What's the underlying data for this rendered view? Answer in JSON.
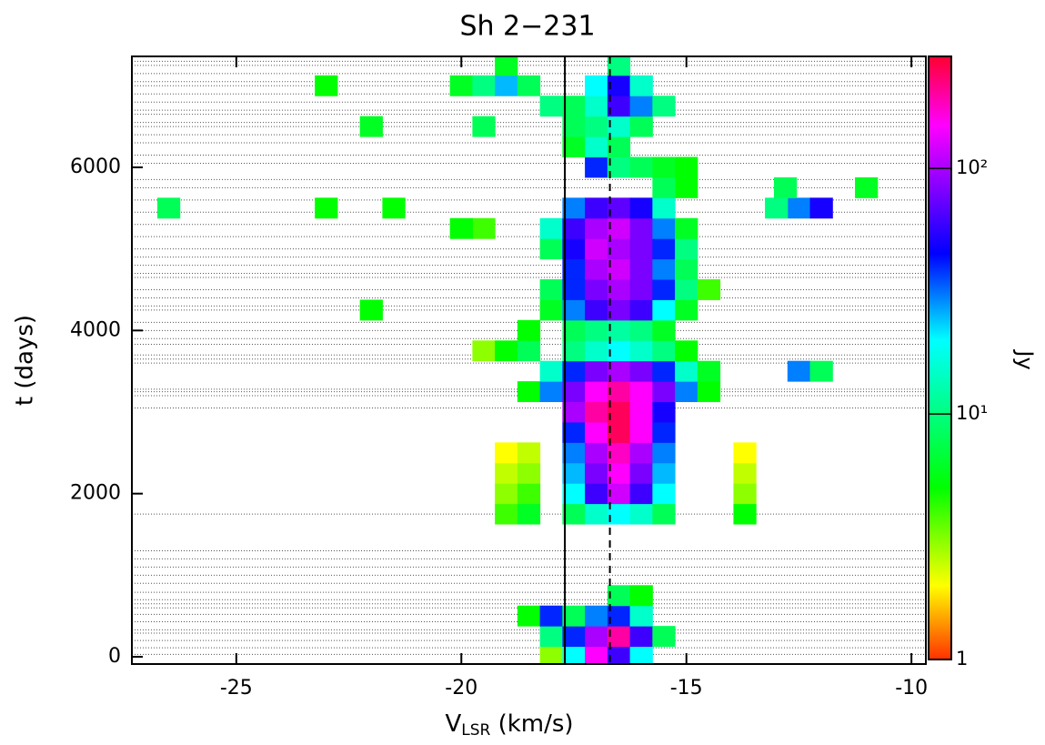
{
  "chart_data": {
    "type": "heatmap",
    "title": "Sh 2−231",
    "x_label": "V",
    "x_label_sub": "LSR",
    "x_label_unit": " (km/s)",
    "y_label": "t (days)",
    "colorbar_label": "Jy",
    "xlim": [
      -27.32,
      -9.68
    ],
    "xticks": [
      -25,
      -20,
      -15,
      -10
    ],
    "ylim": [
      -89,
      7360
    ],
    "yticks": [
      0,
      2000,
      4000,
      6000
    ],
    "clim": [
      1,
      286
    ],
    "cscale": "log",
    "cticks": [
      1,
      {
        "value": 10,
        "label": "10¹"
      },
      {
        "value": 100,
        "label": "10²"
      }
    ],
    "colormap": {
      "values": [
        1,
        2,
        5,
        20,
        45,
        150,
        286
      ],
      "colors": [
        "#ff3000",
        "#ffff00",
        "#00ff00",
        "#00ffff",
        "#0000ff",
        "#ff00ff",
        "#ff0030"
      ]
    },
    "reference_lines": [
      {
        "value": -17.7,
        "style": "solid"
      },
      {
        "value": -16.7,
        "style": "dashed"
      }
    ],
    "epochs": [
      30,
      110,
      200,
      290,
      330,
      430,
      520,
      600,
      650,
      700,
      790,
      900,
      1000,
      1100,
      1200,
      1300,
      1750,
      3050,
      3200,
      3250,
      3280,
      3600,
      3650,
      3700,
      3830,
      3900,
      4000,
      4100,
      4250,
      4300,
      4400,
      4500,
      4650,
      4700,
      4800,
      4900,
      5000,
      5150,
      5300,
      5450,
      5600,
      5750,
      5850,
      6050,
      6150,
      6300,
      6400,
      6500,
      6550,
      6650,
      6700,
      6800,
      6900,
      7000,
      7050,
      7150,
      7250,
      7300
    ],
    "cells": {
      "v": [
        -18,
        -17.5,
        -17,
        -16.5,
        -16,
        -18,
        -17.5,
        -17,
        -16.5,
        -16,
        -15.5,
        -18.5,
        -18,
        -17.5,
        -17,
        -16.5,
        -16,
        -16.5,
        -16,
        -19,
        -18.5,
        -13.7,
        -17.5,
        -17,
        -16.5,
        -16,
        -15.5,
        -19,
        -18.5,
        -17.5,
        -17,
        -16.5,
        -16,
        -15.5,
        -13.7,
        -19,
        -18.5,
        -17.5,
        -17,
        -16.5,
        -16,
        -15.5,
        -13.7,
        -19,
        -18.5,
        -17.5,
        -17,
        -16.5,
        -16,
        -15.5,
        -13.7,
        -17.5,
        -17,
        -16.5,
        -16,
        -15.5,
        -17.5,
        -17,
        -16.5,
        -16,
        -15.5,
        -18.5,
        -18,
        -17.5,
        -17,
        -16.5,
        -16,
        -15.5,
        -15,
        -14.5,
        -18,
        -17.5,
        -17,
        -16.5,
        -16,
        -15.5,
        -15,
        -14.5,
        -12.5,
        -12,
        -19.5,
        -19,
        -18.5,
        -17.5,
        -17,
        -16.5,
        -16,
        -15.5,
        -15,
        -18.5,
        -17.5,
        -17,
        -16.5,
        -16,
        -15.5,
        -18,
        -17.5,
        -17,
        -16.5,
        -16,
        -15.5,
        -15,
        -22,
        -18,
        -17.5,
        -17,
        -16.5,
        -16,
        -15.5,
        -15,
        -14.5,
        -17.5,
        -17,
        -16.5,
        -16,
        -15.5,
        -15,
        -18,
        -17.5,
        -17,
        -16.5,
        -16,
        -15.5,
        -15,
        -19.5,
        -18,
        -17.5,
        -17,
        -16.5,
        -16,
        -15.5,
        -15,
        -20,
        -17.5,
        -17,
        -16.5,
        -16,
        -15.5,
        -23,
        -21.5,
        -26.5,
        -12.5,
        -12,
        -13,
        -12.8,
        -11,
        -15,
        -15.5,
        -17,
        -16.5,
        -16,
        -15.5,
        -15,
        -17.5,
        -17,
        -16.5,
        -19.5,
        -22,
        -17.5,
        -17,
        -16.5,
        -16,
        -18,
        -17.5,
        -17,
        -16.5,
        -16,
        -15.5,
        -20,
        -19.5,
        -19,
        -18.5,
        -17,
        -16.5,
        -16,
        -23,
        -19,
        -16.5
      ],
      "t": [
        0,
        0,
        0,
        0,
        0,
        250,
        250,
        250,
        250,
        250,
        250,
        500,
        500,
        500,
        500,
        500,
        500,
        750,
        750,
        1750,
        1750,
        1750,
        1750,
        1750,
        1750,
        1750,
        1750,
        2000,
        2000,
        2000,
        2000,
        2000,
        2000,
        2000,
        2000,
        2250,
        2250,
        2250,
        2250,
        2250,
        2250,
        2250,
        2250,
        2500,
        2500,
        2500,
        2500,
        2500,
        2500,
        2500,
        2500,
        2750,
        2750,
        2750,
        2750,
        2750,
        3000,
        3000,
        3000,
        3000,
        3000,
        3250,
        3250,
        3250,
        3250,
        3250,
        3250,
        3250,
        3250,
        3250,
        3500,
        3500,
        3500,
        3500,
        3500,
        3500,
        3500,
        3500,
        3500,
        3500,
        3750,
        3750,
        3750,
        3750,
        3750,
        3750,
        3750,
        3750,
        3750,
        4000,
        4000,
        4000,
        4000,
        4000,
        4000,
        4250,
        4250,
        4250,
        4250,
        4250,
        4250,
        4250,
        4250,
        4500,
        4500,
        4500,
        4500,
        4500,
        4500,
        4500,
        4500,
        4750,
        4750,
        4750,
        4750,
        4750,
        4750,
        5000,
        5000,
        5000,
        5000,
        5000,
        5000,
        5000,
        5250,
        5250,
        5250,
        5250,
        5250,
        5250,
        5250,
        5250,
        5250,
        5500,
        5500,
        5500,
        5500,
        5500,
        5500,
        5500,
        5500,
        5500,
        5500,
        5500,
        5750,
        5750,
        5750,
        5750,
        6000,
        6000,
        6000,
        6000,
        6000,
        6250,
        6250,
        6250,
        6500,
        6500,
        6500,
        6500,
        6500,
        6500,
        6750,
        6750,
        6750,
        6750,
        6750,
        6750,
        7000,
        7000,
        7000,
        7000,
        7000,
        7000,
        7000,
        7000,
        7250,
        7250
      ],
      "values": [
        3,
        20,
        150,
        60,
        20,
        10,
        40,
        100,
        200,
        60,
        8,
        5,
        40,
        8,
        30,
        40,
        15,
        8,
        5,
        4,
        6,
        5,
        8,
        15,
        20,
        15,
        8,
        3,
        4,
        20,
        60,
        120,
        60,
        20,
        3,
        2.5,
        3,
        25,
        80,
        150,
        80,
        25,
        2.5,
        2,
        2.5,
        30,
        100,
        180,
        100,
        30,
        2,
        40,
        150,
        250,
        150,
        40,
        100,
        200,
        250,
        150,
        50,
        5,
        30,
        80,
        150,
        200,
        150,
        80,
        30,
        5,
        15,
        40,
        80,
        100,
        80,
        40,
        15,
        6,
        30,
        8,
        3,
        5,
        8,
        10,
        15,
        20,
        15,
        10,
        5,
        5,
        8,
        10,
        12,
        10,
        6,
        6,
        30,
        60,
        80,
        60,
        20,
        6,
        5,
        8,
        40,
        80,
        100,
        80,
        40,
        10,
        4,
        40,
        100,
        120,
        80,
        30,
        8,
        8,
        50,
        120,
        100,
        80,
        40,
        10,
        4,
        15,
        60,
        100,
        120,
        80,
        30,
        6,
        5,
        30,
        60,
        70,
        50,
        15,
        5,
        5,
        8,
        30,
        50,
        10,
        8,
        6,
        5,
        8,
        40,
        10,
        8,
        6,
        5,
        6,
        15,
        8,
        8,
        6,
        8,
        10,
        15,
        8,
        10,
        8,
        15,
        60,
        30,
        10,
        6,
        10,
        25,
        8,
        20,
        50,
        15,
        5,
        6,
        10
      ]
    }
  }
}
